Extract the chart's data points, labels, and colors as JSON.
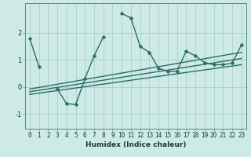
{
  "xlabel": "Humidex (Indice chaleur)",
  "ylabel": "",
  "x_data": [
    0,
    1,
    2,
    3,
    4,
    5,
    6,
    7,
    8,
    9,
    10,
    11,
    12,
    13,
    14,
    15,
    16,
    17,
    18,
    19,
    20,
    21,
    22,
    23
  ],
  "y_main": [
    1.8,
    0.75,
    null,
    -0.08,
    -0.62,
    -0.65,
    0.3,
    1.15,
    1.85,
    null,
    2.72,
    2.55,
    1.5,
    1.28,
    0.68,
    0.58,
    0.58,
    1.32,
    1.15,
    0.9,
    0.82,
    0.82,
    0.88,
    1.55
  ],
  "trend_lines": [
    {
      "x": [
        0,
        23
      ],
      "y": [
        -0.28,
        0.82
      ]
    },
    {
      "x": [
        0,
        23
      ],
      "y": [
        -0.18,
        1.05
      ]
    },
    {
      "x": [
        0,
        23
      ],
      "y": [
        -0.08,
        1.28
      ]
    }
  ],
  "line_color": "#2a6e63",
  "bg_color": "#cdeae7",
  "grid_color": "#aacfcc",
  "yticks": [
    -1,
    0,
    1,
    2
  ],
  "ylim": [
    -1.55,
    3.1
  ],
  "xlim": [
    -0.5,
    23.5
  ],
  "marker_size": 2.5,
  "line_width": 1.0,
  "tick_fontsize": 5.5,
  "xlabel_fontsize": 6.5
}
